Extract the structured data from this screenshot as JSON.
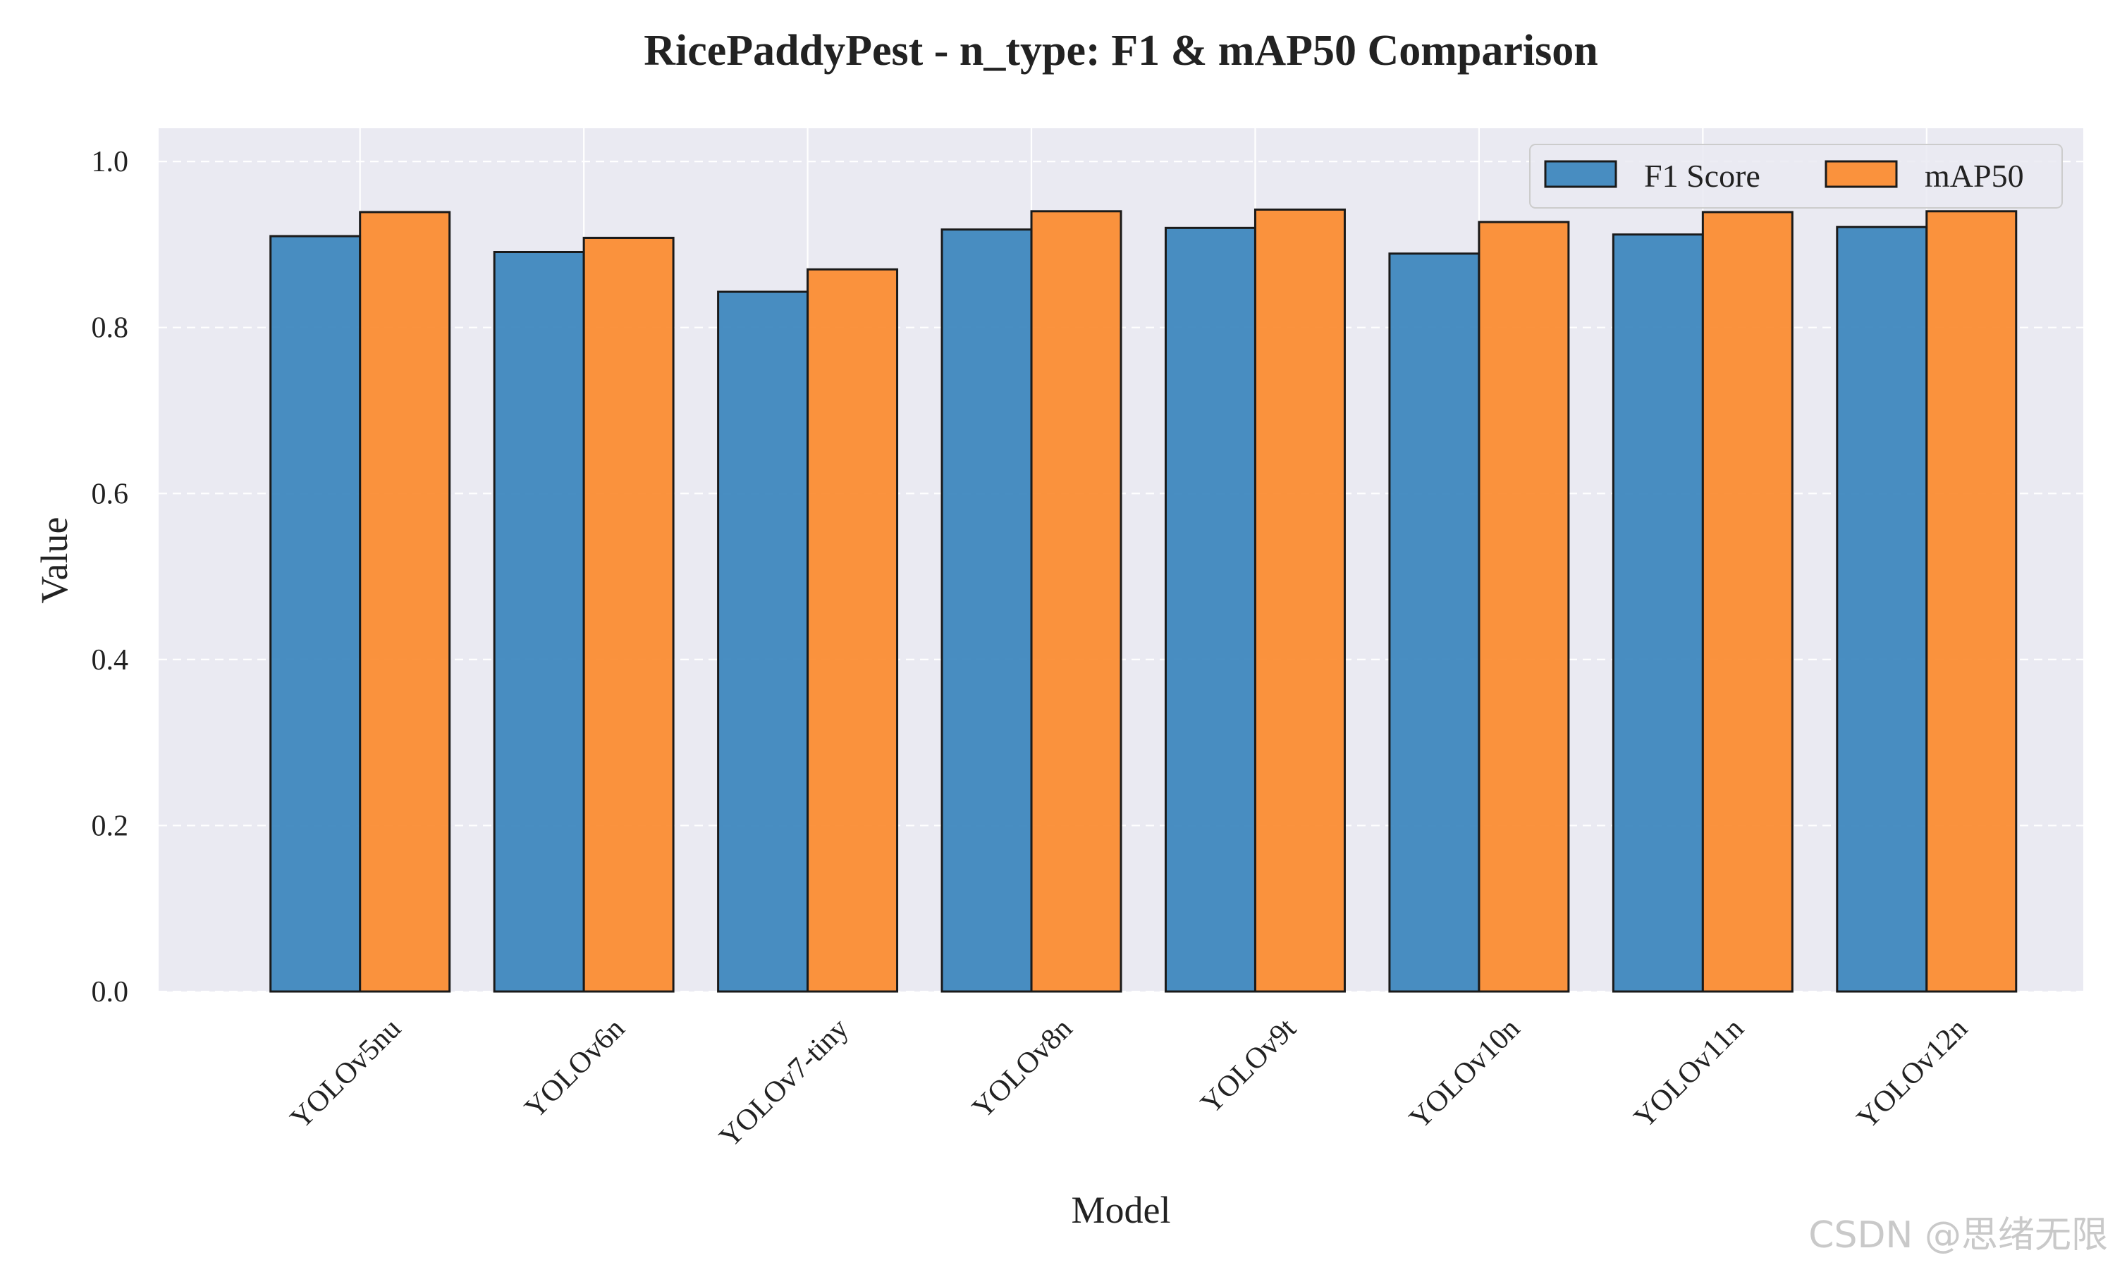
{
  "chart_data": {
    "type": "bar",
    "title": "RicePaddyPest - n_type: F1 & mAP50 Comparison",
    "xlabel": "Model",
    "ylabel": "Value",
    "categories": [
      "YOLOv5nu",
      "YOLOv6n",
      "YOLOv7-tiny",
      "YOLOv8n",
      "YOLOv9t",
      "YOLOv10n",
      "YOLOv11n",
      "YOLOv12n"
    ],
    "series": [
      {
        "name": "F1 Score",
        "color": "#3a84bd",
        "values": [
          0.91,
          0.891,
          0.843,
          0.918,
          0.92,
          0.889,
          0.912,
          0.921
        ]
      },
      {
        "name": "mAP50",
        "color": "#fb8a2e",
        "values": [
          0.939,
          0.908,
          0.87,
          0.94,
          0.942,
          0.927,
          0.939,
          0.94
        ]
      }
    ],
    "ylim": [
      0,
      1.04
    ],
    "yticks": [
      "0.0",
      "0.2",
      "0.4",
      "0.6",
      "0.8",
      "1.0"
    ],
    "grid": true,
    "legend_position": "top-right",
    "background_color": "#eaeaf2"
  },
  "watermark": "CSDN @思绪无限"
}
